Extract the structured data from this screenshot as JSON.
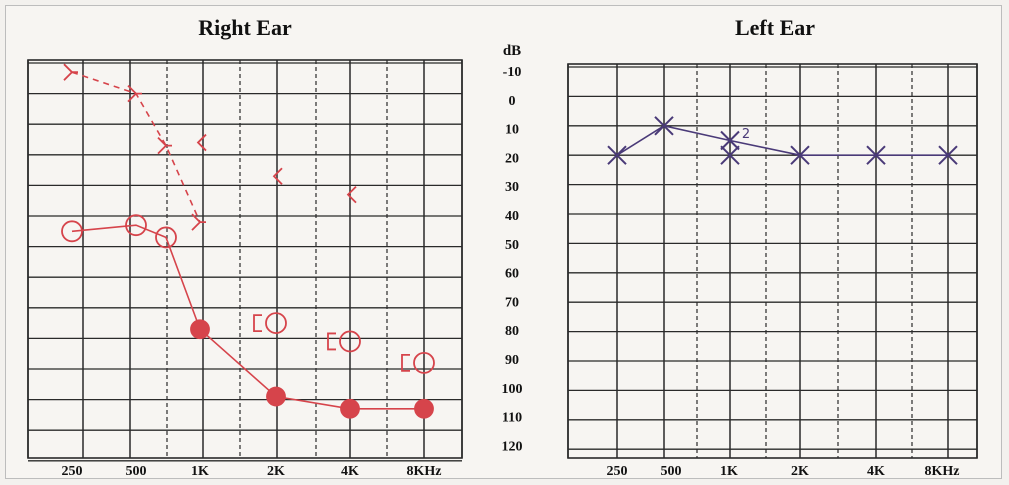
{
  "chart_data": [
    {
      "type": "scatter",
      "title": "Right Ear",
      "x_ticks": [
        "250",
        "500",
        "1K",
        "2K",
        "4K",
        "8KHz"
      ],
      "ylabel": "dB",
      "y_ticks": [
        "-10",
        "0",
        "10",
        "20",
        "30",
        "40",
        "50",
        "60",
        "70",
        "80",
        "90",
        "100",
        "110",
        "120"
      ],
      "ylim": [
        -10,
        120
      ],
      "y_reversed": true,
      "grid": true,
      "series": [
        {
          "x": [
            "250",
            "500",
            "750",
            "1K",
            "2K",
            "4K",
            "8KHz"
          ],
          "values": [
            45,
            43,
            47,
            77,
            99,
            103,
            103
          ],
          "color": "#d6444b"
        },
        {
          "x": [
            "250",
            "500",
            "750",
            "1K"
          ],
          "values": [
            -7,
            0,
            17,
            42
          ],
          "color": "#d6444b"
        },
        {
          "x": [
            "1K",
            "2K",
            "4K"
          ],
          "values": [
            16,
            27,
            33
          ],
          "color": "#d6444b"
        },
        {
          "x": [
            "2K",
            "4K",
            "8KHz"
          ],
          "values": [
            75,
            81,
            88
          ],
          "color": "#d6444b"
        }
      ]
    },
    {
      "type": "line",
      "title": "Left Ear",
      "x_ticks": [
        "250",
        "500",
        "1K",
        "2K",
        "4K",
        "8KHz"
      ],
      "ylabel": "dB",
      "y_ticks": [
        "-10",
        "0",
        "10",
        "20",
        "30",
        "40",
        "50",
        "60",
        "70",
        "80",
        "90",
        "100",
        "110",
        "120"
      ],
      "ylim": [
        -10,
        120
      ],
      "y_reversed": true,
      "grid": true,
      "series": [
        {
          "x": [
            "250",
            "500",
            "1K",
            "2K",
            "4K",
            "8KHz"
          ],
          "values": [
            20,
            10,
            15,
            20,
            20,
            20
          ],
          "color": "#4a3a78"
        },
        {
          "x": [
            "1K"
          ],
          "values": [
            20
          ],
          "color": "#4a3a78"
        }
      ]
    }
  ],
  "annotations": {
    "left_ear_note": "2"
  },
  "colors": {
    "grid": "#2a2a2a",
    "right_ear_marks": "#d6444b",
    "left_ear_marks": "#4a3a78"
  }
}
